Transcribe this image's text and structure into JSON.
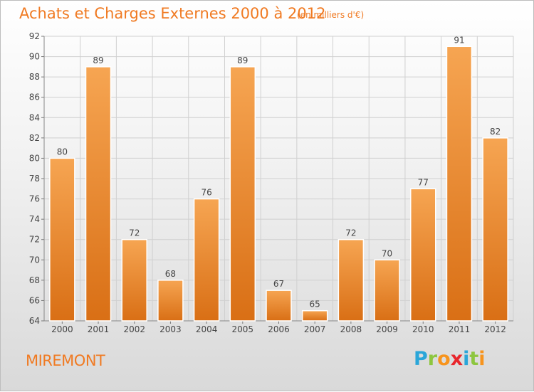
{
  "header": {
    "title": "Achats et Charges Externes 2000 à 2012",
    "unit": "(en milliers d'€)"
  },
  "footer": {
    "place": "MIREMONT",
    "logo_letters": [
      "P",
      "r",
      "o",
      "x",
      "i",
      "t",
      "i"
    ],
    "logo_colors": [
      "#2aa6d9",
      "#8dc63f",
      "#f7941d",
      "#e8262c",
      "#2aa6d9",
      "#8dc63f",
      "#f7941d"
    ]
  },
  "chart_data": {
    "type": "bar",
    "categories": [
      "2000",
      "2001",
      "2002",
      "2003",
      "2004",
      "2005",
      "2006",
      "2007",
      "2008",
      "2009",
      "2010",
      "2011",
      "2012"
    ],
    "values": [
      80,
      89,
      72,
      68,
      76,
      89,
      67,
      65,
      72,
      70,
      77,
      91,
      82
    ],
    "data_labels": [
      "80",
      "89",
      "72",
      "68",
      "76",
      "89",
      "67",
      "65",
      "72",
      "70",
      "77",
      "91",
      "82"
    ],
    "ylim": [
      64,
      92
    ],
    "y_ticks": [
      "64",
      "66",
      "68",
      "70",
      "72",
      "74",
      "76",
      "78",
      "80",
      "82",
      "84",
      "86",
      "88",
      "90",
      "92"
    ],
    "grid": true,
    "bar_color": "#f39c3f"
  }
}
